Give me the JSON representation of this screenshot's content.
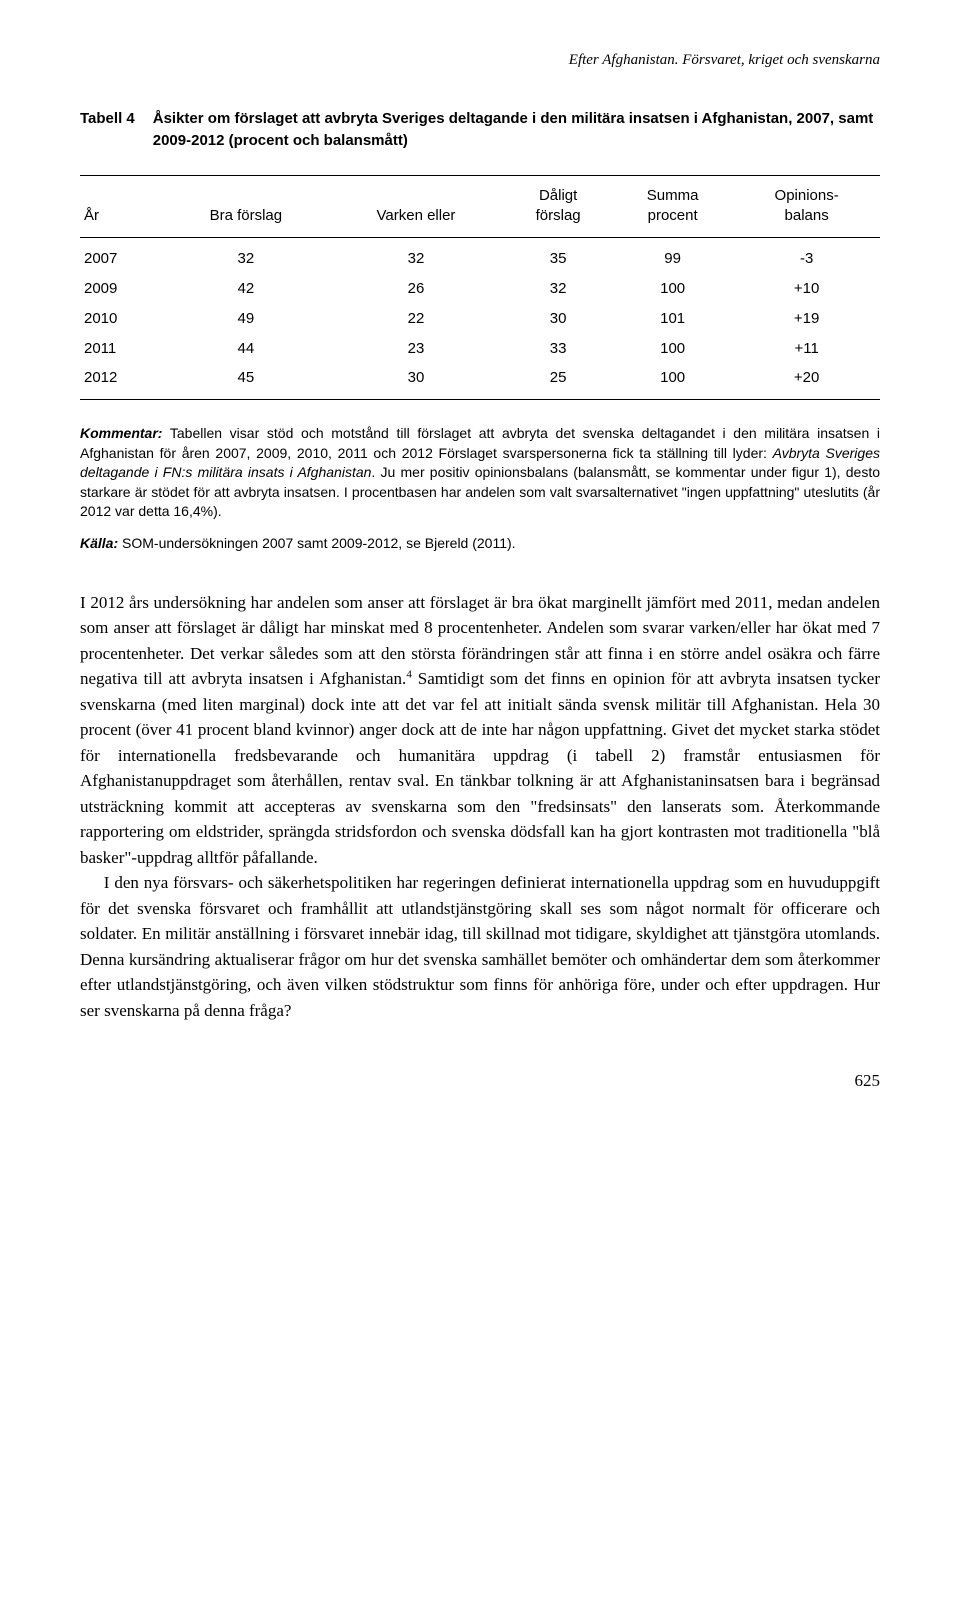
{
  "runningHeader": "Efter Afghanistan. Försvaret, kriget och svenskarna",
  "tableCaption": {
    "label": "Tabell 4",
    "description": "Åsikter om förslaget att avbryta Sveriges deltagande i den militära insatsen i Afghanistan, 2007, samt 2009-2012 (procent och balansmått)"
  },
  "table": {
    "headers": {
      "col1": "År",
      "col2": "Bra förslag",
      "col3": "Varken eller",
      "col4_line1": "Dåligt",
      "col4_line2": "förslag",
      "col5_line1": "Summa",
      "col5_line2": "procent",
      "col6_line1": "Opinions-",
      "col6_line2": "balans"
    },
    "rows": [
      {
        "year": "2007",
        "bra": "32",
        "varken": "32",
        "daligt": "35",
        "summa": "99",
        "balans": "-3"
      },
      {
        "year": "2009",
        "bra": "42",
        "varken": "26",
        "daligt": "32",
        "summa": "100",
        "balans": "+10"
      },
      {
        "year": "2010",
        "bra": "49",
        "varken": "22",
        "daligt": "30",
        "summa": "101",
        "balans": "+19"
      },
      {
        "year": "2011",
        "bra": "44",
        "varken": "23",
        "daligt": "33",
        "summa": "100",
        "balans": "+11"
      },
      {
        "year": "2012",
        "bra": "45",
        "varken": "30",
        "daligt": "25",
        "summa": "100",
        "balans": "+20"
      }
    ]
  },
  "commentary": {
    "lead": "Kommentar:",
    "part1": " Tabellen visar stöd och motstånd till förslaget att avbryta det svenska deltagandet i den militära insatsen i Afghanistan för åren 2007, 2009, 2010, 2011 och 2012 Förslaget svarspersonerna fick ta ställning till lyder: ",
    "italic": "Avbryta Sveriges deltagande i FN:s militära insats i Afghanistan",
    "part2": ". Ju mer positiv opinionsbalans (balansmått, se kommentar under figur 1), desto starkare är stödet för att avbryta insatsen. I procentbasen har andelen som valt svarsalternativet \"ingen uppfattning\" uteslutits (år 2012 var detta 16,4%)."
  },
  "source": {
    "lead": "Källa:",
    "text": " SOM-undersökningen 2007 samt 2009-2012, se Bjereld (2011)."
  },
  "body": {
    "p1_pre": "I 2012 års undersökning har andelen som anser att förslaget är bra ökat marginellt jämfört med 2011, medan andelen som anser att förslaget är dåligt har minskat med 8 procentenheter. Andelen som svarar varken/eller har ökat med 7 procentenheter. Det verkar således som att den största förändringen står att finna i en större andel osäkra och färre negativa till att avbryta insatsen i Afghanistan.",
    "p1_sup": "4",
    "p1_post": " Samtidigt som det finns en opinion för att avbryta insatsen tycker svenskarna (med liten marginal) dock inte att det var fel att initialt sända svensk militär till Afghanistan. Hela 30 procent (över 41 procent bland kvinnor) anger dock att de inte har någon uppfattning. Givet det mycket starka stödet för internationella fredsbevarande och humanitära uppdrag (i tabell 2) framstår entusiasmen för Afghanistanuppdraget som återhållen, rentav sval. En tänkbar tolkning är att Afghanistaninsatsen bara i begränsad utsträckning kommit att accepteras av svenskarna som den \"fredsinsats\" den lanserats som. Återkommande rapportering om eldstrider, sprängda stridsfordon och svenska dödsfall kan ha gjort kontrasten mot traditionella \"blå basker\"-uppdrag alltför påfallande.",
    "p2": "I den nya försvars- och säkerhetspolitiken har regeringen definierat internationella uppdrag som en huvuduppgift för det svenska försvaret och framhållit att utlandstjänstgöring skall ses som något normalt för officerare och soldater. En militär anställning i försvaret innebär idag, till skillnad mot tidigare, skyldighet att tjänstgöra utomlands. Denna kursändring aktualiserar frågor om hur det svenska samhället bemöter och omhändertar dem som återkommer efter utlandstjänstgöring, och även vilken stödstruktur som finns för anhöriga före, under och efter uppdragen. Hur ser svenskarna på denna fråga?"
  },
  "pageNumber": "625"
}
